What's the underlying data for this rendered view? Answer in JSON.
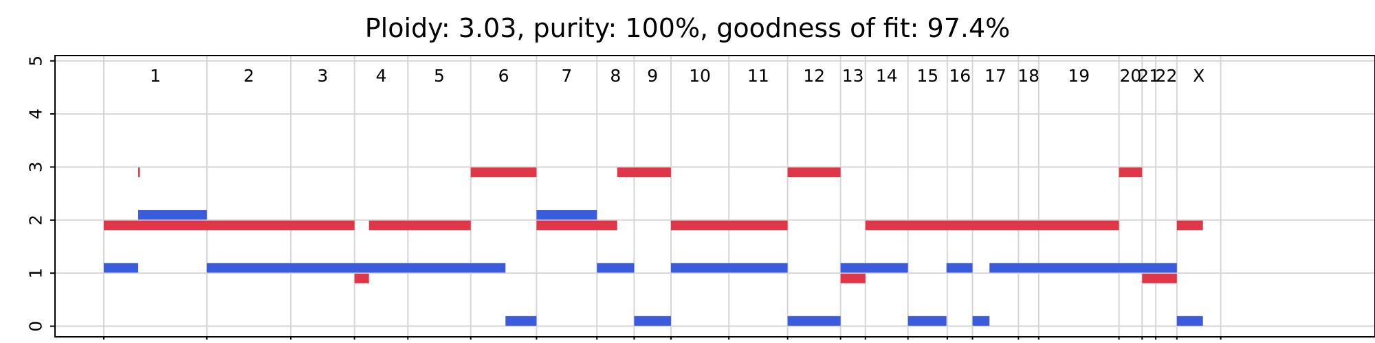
{
  "chart_data": {
    "type": "segment",
    "title": "Ploidy: 3.03, purity: 100%, goodness of fit: 97.4%",
    "xlabel": "",
    "ylabel": "",
    "ylim": [
      -0.2,
      5.1
    ],
    "yticks": [
      0,
      1,
      2,
      3,
      4,
      5
    ],
    "grid": true,
    "genome_span": [
      0,
      2940
    ],
    "chromosomes": [
      {
        "name": "1",
        "start": 0,
        "end": 249
      },
      {
        "name": "2",
        "start": 249,
        "end": 452
      },
      {
        "name": "3",
        "start": 452,
        "end": 606
      },
      {
        "name": "4",
        "start": 606,
        "end": 735
      },
      {
        "name": "5",
        "start": 735,
        "end": 887
      },
      {
        "name": "6",
        "start": 887,
        "end": 1046
      },
      {
        "name": "7",
        "start": 1046,
        "end": 1192
      },
      {
        "name": "8",
        "start": 1192,
        "end": 1282
      },
      {
        "name": "9",
        "start": 1282,
        "end": 1371
      },
      {
        "name": "10",
        "start": 1371,
        "end": 1511
      },
      {
        "name": "11",
        "start": 1511,
        "end": 1653
      },
      {
        "name": "12",
        "start": 1653,
        "end": 1781
      },
      {
        "name": "13",
        "start": 1781,
        "end": 1841
      },
      {
        "name": "14",
        "start": 1841,
        "end": 1944
      },
      {
        "name": "15",
        "start": 1944,
        "end": 2039
      },
      {
        "name": "16",
        "start": 2039,
        "end": 2100
      },
      {
        "name": "17",
        "start": 2100,
        "end": 2211
      },
      {
        "name": "18",
        "start": 2211,
        "end": 2260
      },
      {
        "name": "19",
        "start": 2260,
        "end": 2454
      },
      {
        "name": "20",
        "start": 2454,
        "end": 2510
      },
      {
        "name": "21",
        "start": 2510,
        "end": 2543
      },
      {
        "name": "22",
        "start": 2543,
        "end": 2594
      },
      {
        "name": "X",
        "start": 2594,
        "end": 2700
      }
    ],
    "series": [
      {
        "color": "#e03748",
        "segments": [
          {
            "x0": 0,
            "x1": 606,
            "y": 1.9
          },
          {
            "x0": 83,
            "x1": 86,
            "y": 2.9
          },
          {
            "x0": 606,
            "x1": 641,
            "y": 0.9
          },
          {
            "x0": 641,
            "x1": 887,
            "y": 1.9
          },
          {
            "x0": 887,
            "x1": 1046,
            "y": 2.9
          },
          {
            "x0": 1046,
            "x1": 1241,
            "y": 1.9
          },
          {
            "x0": 1241,
            "x1": 1371,
            "y": 2.9
          },
          {
            "x0": 1371,
            "x1": 1653,
            "y": 1.9
          },
          {
            "x0": 1653,
            "x1": 1781,
            "y": 2.9
          },
          {
            "x0": 1781,
            "x1": 1841,
            "y": 0.9
          },
          {
            "x0": 1841,
            "x1": 2454,
            "y": 1.9
          },
          {
            "x0": 2454,
            "x1": 2510,
            "y": 2.9
          },
          {
            "x0": 2510,
            "x1": 2594,
            "y": 0.9
          },
          {
            "x0": 2594,
            "x1": 2657,
            "y": 1.9
          }
        ]
      },
      {
        "color": "#3a5bdc",
        "segments": [
          {
            "x0": 0,
            "x1": 83,
            "y": 1.1
          },
          {
            "x0": 83,
            "x1": 249,
            "y": 2.1
          },
          {
            "x0": 249,
            "x1": 971,
            "y": 1.1
          },
          {
            "x0": 971,
            "x1": 1046,
            "y": 0.1
          },
          {
            "x0": 1046,
            "x1": 1192,
            "y": 2.1
          },
          {
            "x0": 1192,
            "x1": 1282,
            "y": 1.1
          },
          {
            "x0": 1282,
            "x1": 1371,
            "y": 0.1
          },
          {
            "x0": 1371,
            "x1": 1653,
            "y": 1.1
          },
          {
            "x0": 1653,
            "x1": 1781,
            "y": 0.1
          },
          {
            "x0": 1781,
            "x1": 1944,
            "y": 1.1
          },
          {
            "x0": 1944,
            "x1": 2037,
            "y": 0.1
          },
          {
            "x0": 2037,
            "x1": 2100,
            "y": 1.1
          },
          {
            "x0": 2100,
            "x1": 2141,
            "y": 0.1
          },
          {
            "x0": 2141,
            "x1": 2594,
            "y": 1.1
          },
          {
            "x0": 2594,
            "x1": 2657,
            "y": 0.1
          }
        ]
      }
    ]
  }
}
